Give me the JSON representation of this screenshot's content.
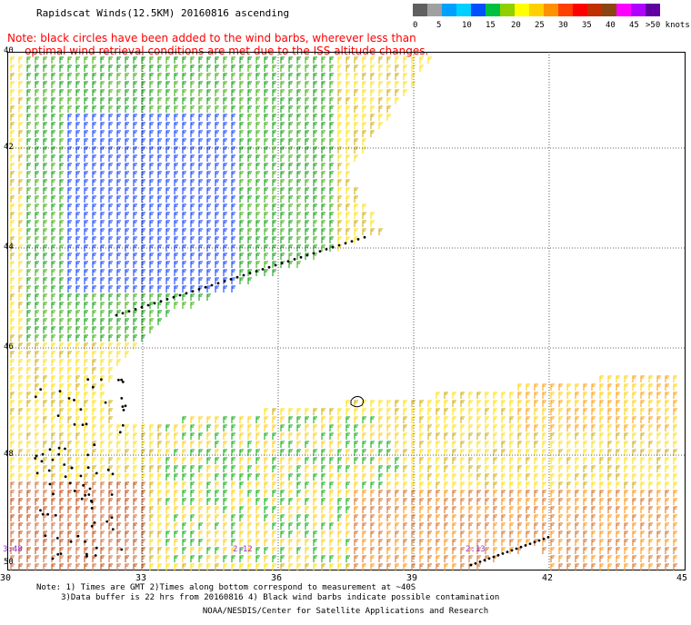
{
  "title": "Rapidscat Winds(12.5KM) 20160816 ascending",
  "note_line1": "Note: black circles have been added to the wind barbs, wherever less than",
  "note_line2": "     optimal wind retrieval conditions are met due to the ISS altitude changes.",
  "colorbar": {
    "labels": [
      "0",
      "5",
      "10",
      "15",
      "20",
      "25",
      "30",
      "35",
      "40",
      "45",
      ">50 knots"
    ],
    "colors": [
      "#606060",
      "#a0a0a0",
      "#00a0ff",
      "#00d0ff",
      "#0050ff",
      "#00c040",
      "#90d000",
      "#ffff00",
      "#ffd000",
      "#ff9000",
      "#ff4000",
      "#ff0000",
      "#c03000",
      "#8b4513",
      "#ff00ff",
      "#b000ff",
      "#6000a0"
    ]
  },
  "lat_labels": [
    "40",
    "42",
    "44",
    "46",
    "48",
    "50"
  ],
  "lon_labels": [
    "30",
    "33",
    "36",
    "39",
    "42",
    "45"
  ],
  "time_labels": [
    "3:48",
    "2:12",
    "2:13"
  ],
  "footer_line1": "Note: 1) Times are GMT 2)Times along bottom correspond to measurement at ~40S",
  "footer_line2": "     3)Data buffer is 22 hrs from 20160816 4) Black wind barbs indicate possible contamination",
  "credit": "NOAA/NESDIS/Center for Satellite Applications and Research"
}
